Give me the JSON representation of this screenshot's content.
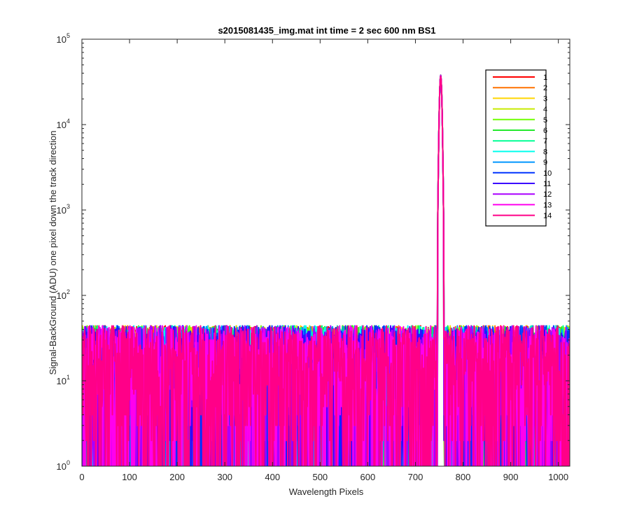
{
  "chart_data": {
    "type": "line",
    "title": "s2015081435_img.mat int time = 2 sec  600 nm BS1",
    "xlabel": "Wavelength Pixels",
    "ylabel": "Signal-BackGround (ADU) one pixel down the track direction",
    "xlim": [
      0,
      1024
    ],
    "ylim": [
      1,
      100000
    ],
    "yscale": "log",
    "grid": false,
    "legend_position": "top-right",
    "x_ticks": [
      "0",
      "100",
      "200",
      "300",
      "400",
      "500",
      "600",
      "700",
      "800",
      "900",
      "1000"
    ],
    "x_tick_values": [
      0,
      100,
      200,
      300,
      400,
      500,
      600,
      700,
      800,
      900,
      1000
    ],
    "y_ticks": [
      {
        "base": "10",
        "exp": "0",
        "value": 1
      },
      {
        "base": "10",
        "exp": "1",
        "value": 10
      },
      {
        "base": "10",
        "exp": "2",
        "value": 100
      },
      {
        "base": "10",
        "exp": "3",
        "value": 1000
      },
      {
        "base": "10",
        "exp": "4",
        "value": 10000
      },
      {
        "base": "10",
        "exp": "5",
        "value": 100000
      }
    ],
    "noise_floor_range": [
      1,
      45
    ],
    "peak": {
      "x_center": 753,
      "halfwidth": 6,
      "max_value": 38000
    },
    "series": [
      {
        "name": "1",
        "color": "#ff0000"
      },
      {
        "name": "2",
        "color": "#ff7200"
      },
      {
        "name": "3",
        "color": "#ffd500"
      },
      {
        "name": "4",
        "color": "#c8ea00"
      },
      {
        "name": "5",
        "color": "#6fff00"
      },
      {
        "name": "6",
        "color": "#23e92d"
      },
      {
        "name": "7",
        "color": "#00ff95"
      },
      {
        "name": "8",
        "color": "#00ffee"
      },
      {
        "name": "9",
        "color": "#0096ff"
      },
      {
        "name": "10",
        "color": "#0033ff"
      },
      {
        "name": "11",
        "color": "#3a00ff"
      },
      {
        "name": "12",
        "color": "#aa00ff"
      },
      {
        "name": "13",
        "color": "#ff00ee"
      },
      {
        "name": "14",
        "color": "#ff0088"
      }
    ]
  }
}
